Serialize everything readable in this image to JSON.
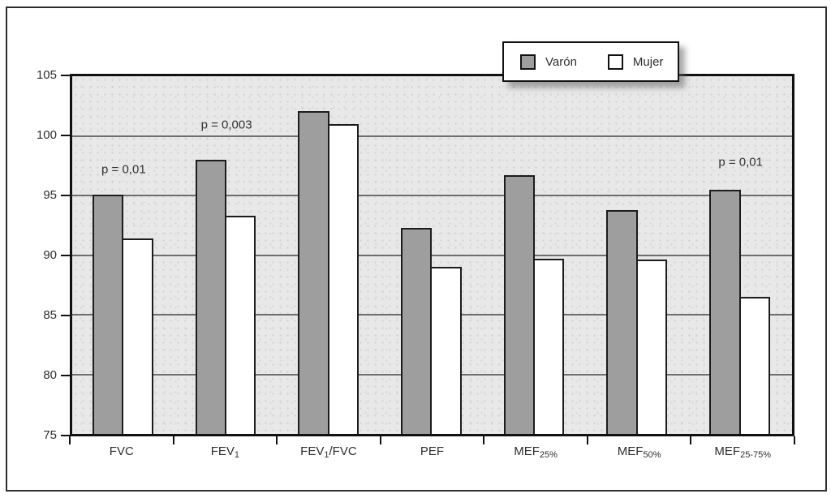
{
  "figure": {
    "background": "#ffffff",
    "border_color": "#2f2f2f"
  },
  "legend": {
    "items": [
      {
        "label": "Varón",
        "swatch_color": "#9e9e9e"
      },
      {
        "label": "Mujer",
        "swatch_color": "#ffffff"
      }
    ]
  },
  "chart_data": {
    "type": "bar",
    "categories": [
      "FVC",
      "FEV1",
      "FEV1/FVC",
      "PEF",
      "MEF25%",
      "MEF50%",
      "MEF25-75%"
    ],
    "category_parts": [
      [
        {
          "t": "FVC"
        }
      ],
      [
        {
          "t": "FEV"
        },
        {
          "t": "1",
          "sub": true
        }
      ],
      [
        {
          "t": "FEV"
        },
        {
          "t": "1",
          "sub": true
        },
        {
          "t": "/FVC"
        }
      ],
      [
        {
          "t": "PEF"
        }
      ],
      [
        {
          "t": "MEF"
        },
        {
          "t": "25%",
          "sub": true
        }
      ],
      [
        {
          "t": "MEF"
        },
        {
          "t": "50%",
          "sub": true
        }
      ],
      [
        {
          "t": "MEF"
        },
        {
          "t": "25-75%",
          "sub": true
        }
      ]
    ],
    "series": [
      {
        "name": "Varón",
        "color": "#9e9e9e",
        "values": [
          95.1,
          98.0,
          102.1,
          92.3,
          96.7,
          93.8,
          95.5
        ]
      },
      {
        "name": "Mujer",
        "color": "#ffffff",
        "values": [
          91.4,
          93.3,
          101.0,
          89.0,
          89.7,
          89.6,
          86.5
        ]
      }
    ],
    "annotations": [
      {
        "text": "p = 0,01",
        "group": 0,
        "value": 97.2
      },
      {
        "text": "p = 0,003",
        "group": 1,
        "value": 100.9
      },
      {
        "text": "p = 0,01",
        "group": 6,
        "value": 97.8
      }
    ],
    "ylim": [
      75,
      105
    ],
    "ytick_step": 5,
    "yticks": [
      75,
      80,
      85,
      90,
      95,
      100,
      105
    ],
    "gridline_values": [
      80,
      85,
      90,
      95,
      100
    ],
    "grid": true,
    "legend_position": "top-right",
    "colors": {
      "plot_bg": "#e8e8e8",
      "gridline": "#6e6e6e",
      "axis": "#111111",
      "bar_border": "#1c1c1c",
      "text": "#2e2e2e"
    }
  }
}
